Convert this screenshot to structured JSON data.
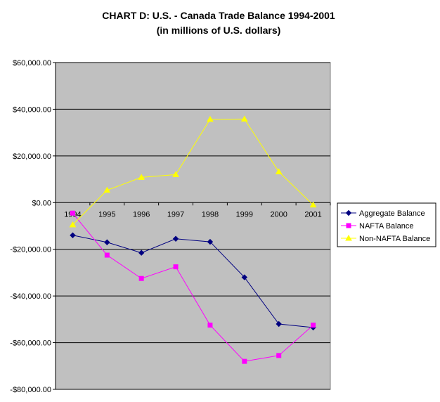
{
  "chart_data": {
    "type": "line",
    "title": "CHART D: U.S. - Canada Trade Balance 1994-2001",
    "subtitle": "(in millions of U.S. dollars)",
    "categories": [
      "1994",
      "1995",
      "1996",
      "1997",
      "1998",
      "1999",
      "2000",
      "2001"
    ],
    "ylim": [
      -80000,
      60000
    ],
    "yticks": [
      60000,
      40000,
      20000,
      0,
      -20000,
      -40000,
      -60000,
      -80000
    ],
    "ytick_labels": [
      "$60,000.00",
      "$40,000.00",
      "$20,000.00",
      "$0.00",
      "-$20,000.00",
      "-$40,000.00",
      "-$60,000.00",
      "-$80,000.00"
    ],
    "grid": true,
    "legend_position": "right",
    "plot_background": "#c0c0c0",
    "series": [
      {
        "name": "Aggregate Balance",
        "color": "#000080",
        "marker": "diamond",
        "values": [
          -14000,
          -17000,
          -21500,
          -15500,
          -16800,
          -32000,
          -52000,
          -53500
        ]
      },
      {
        "name": "NAFTA Balance",
        "color": "#ff00ff",
        "marker": "square",
        "values": [
          -4500,
          -22500,
          -32500,
          -27500,
          -52500,
          -68000,
          -65500,
          -52500
        ]
      },
      {
        "name": "Non-NAFTA Balance",
        "color": "#ffff00",
        "marker": "triangle",
        "values": [
          -9500,
          5300,
          10800,
          12000,
          35700,
          35800,
          13200,
          -1000
        ]
      }
    ]
  }
}
